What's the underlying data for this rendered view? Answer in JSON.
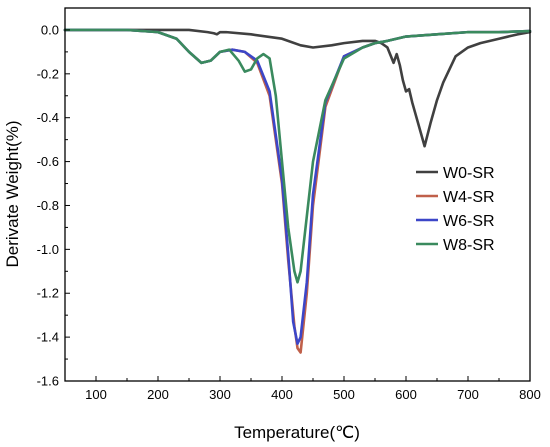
{
  "chart_data": {
    "type": "line",
    "xlabel": "Temperature(℃)",
    "ylabel": "Derivate Weight(%)",
    "xlim": [
      50,
      800
    ],
    "ylim": [
      -1.6,
      0.1
    ],
    "xticks": [
      100,
      200,
      300,
      400,
      500,
      600,
      700,
      800
    ],
    "yticks": [
      0.0,
      -0.2,
      -0.4,
      -0.6,
      -0.8,
      -1.0,
      -1.2,
      -1.4,
      -1.6
    ],
    "ytick_labels": [
      "0.0",
      "-0.2",
      "-0.4",
      "-0.6",
      "-0.8",
      "-1.0",
      "-1.2",
      "-1.4",
      "-1.6"
    ],
    "grid": false,
    "legend_position": "center-right",
    "series": [
      {
        "name": "W0-SR",
        "color": "#404040",
        "x": [
          50,
          100,
          150,
          200,
          250,
          280,
          290,
          295,
          300,
          310,
          350,
          400,
          430,
          450,
          480,
          500,
          530,
          550,
          560,
          570,
          580,
          585,
          590,
          595,
          600,
          605,
          610,
          615,
          620,
          625,
          630,
          640,
          650,
          660,
          680,
          700,
          720,
          750,
          780,
          800
        ],
        "y": [
          0.0,
          0.0,
          0.0,
          0.0,
          0.0,
          -0.01,
          -0.015,
          -0.02,
          -0.01,
          -0.01,
          -0.02,
          -0.04,
          -0.07,
          -0.08,
          -0.07,
          -0.06,
          -0.05,
          -0.05,
          -0.06,
          -0.08,
          -0.15,
          -0.11,
          -0.16,
          -0.23,
          -0.28,
          -0.27,
          -0.33,
          -0.38,
          -0.43,
          -0.48,
          -0.53,
          -0.42,
          -0.32,
          -0.24,
          -0.12,
          -0.08,
          -0.06,
          -0.04,
          -0.02,
          -0.01
        ]
      },
      {
        "name": "W4-SR",
        "color": "#c0604a",
        "x": [
          50,
          100,
          150,
          200,
          230,
          250,
          270,
          285,
          300,
          320,
          340,
          360,
          380,
          400,
          410,
          420,
          425,
          430,
          440,
          450,
          470,
          500,
          530,
          550,
          570,
          600,
          650,
          700,
          750,
          800
        ],
        "y": [
          0.0,
          0.0,
          0.0,
          -0.01,
          -0.04,
          -0.1,
          -0.15,
          -0.14,
          -0.1,
          -0.09,
          -0.1,
          -0.15,
          -0.3,
          -0.7,
          -1.05,
          -1.35,
          -1.45,
          -1.47,
          -1.2,
          -0.8,
          -0.35,
          -0.12,
          -0.08,
          -0.06,
          -0.05,
          -0.03,
          -0.02,
          -0.01,
          -0.01,
          -0.005
        ]
      },
      {
        "name": "W6-SR",
        "color": "#3c46c8",
        "x": [
          50,
          100,
          150,
          200,
          230,
          250,
          270,
          285,
          300,
          320,
          340,
          360,
          380,
          400,
          410,
          418,
          425,
          430,
          440,
          450,
          470,
          500,
          530,
          550,
          570,
          600,
          650,
          700,
          750,
          800
        ],
        "y": [
          0.0,
          0.0,
          0.0,
          -0.01,
          -0.04,
          -0.1,
          -0.15,
          -0.14,
          -0.1,
          -0.09,
          -0.1,
          -0.14,
          -0.28,
          -0.68,
          -1.02,
          -1.33,
          -1.43,
          -1.4,
          -1.15,
          -0.75,
          -0.33,
          -0.12,
          -0.08,
          -0.06,
          -0.05,
          -0.03,
          -0.02,
          -0.01,
          -0.01,
          -0.005
        ]
      },
      {
        "name": "W8-SR",
        "color": "#3a8a5e",
        "x": [
          50,
          100,
          150,
          200,
          230,
          250,
          270,
          285,
          300,
          315,
          330,
          340,
          350,
          360,
          370,
          380,
          390,
          400,
          410,
          420,
          425,
          430,
          440,
          450,
          470,
          500,
          530,
          550,
          570,
          600,
          650,
          700,
          750,
          800
        ],
        "y": [
          0.0,
          0.0,
          0.0,
          -0.01,
          -0.04,
          -0.1,
          -0.15,
          -0.14,
          -0.1,
          -0.09,
          -0.14,
          -0.19,
          -0.18,
          -0.13,
          -0.11,
          -0.13,
          -0.3,
          -0.6,
          -0.9,
          -1.1,
          -1.15,
          -1.1,
          -0.85,
          -0.6,
          -0.32,
          -0.13,
          -0.08,
          -0.06,
          -0.05,
          -0.03,
          -0.02,
          -0.01,
          -0.01,
          -0.005
        ]
      }
    ]
  }
}
